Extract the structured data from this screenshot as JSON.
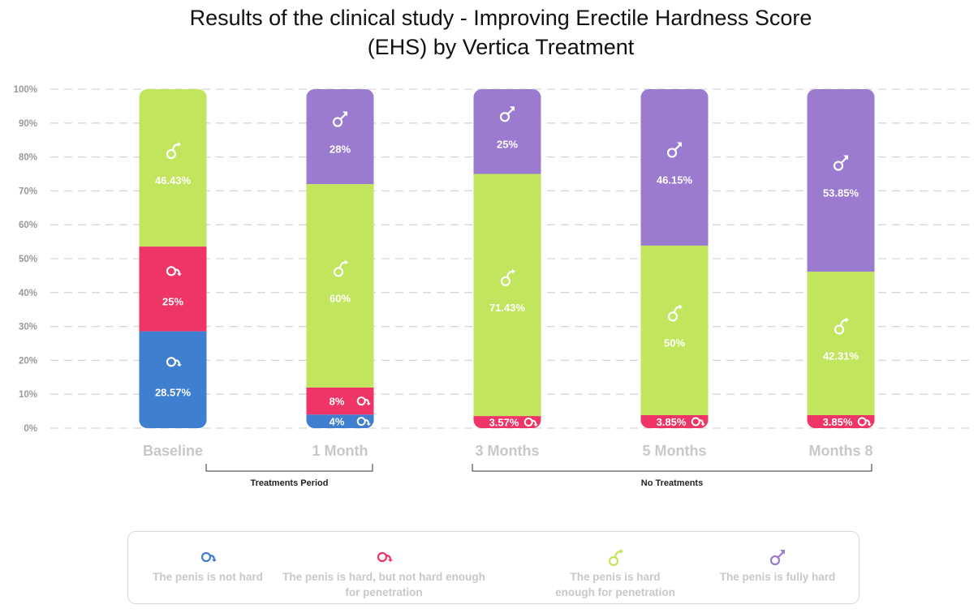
{
  "chart_data": {
    "type": "bar",
    "stacked": true,
    "title": "Results of the clinical study - Improving Erectile Hardness Score (EHS) by Vertica Treatment",
    "title_lines": [
      "Results of the clinical study - Improving Erectile Hardness Score",
      "(EHS) by Vertica Treatment"
    ],
    "categories": [
      "Baseline",
      "1 Month",
      "3 Months",
      "5 Months",
      "Months 8"
    ],
    "yticks": [
      "0%",
      "10%",
      "20%",
      "30%",
      "40%",
      "50%",
      "60%",
      "70%",
      "80%",
      "90%",
      "100%"
    ],
    "ylim": [
      0,
      100
    ],
    "grid": true,
    "series": [
      {
        "name": "The penis is not hard",
        "color": "#3f7fcf",
        "icon": "not-hard-icon",
        "values": [
          28.57,
          4,
          0,
          0,
          0
        ],
        "labels": [
          "28.57%",
          "4%",
          "",
          "",
          ""
        ]
      },
      {
        "name": "The penis is hard, but not hard enough for penetration",
        "color": "#ef3466",
        "icon": "partially-hard-icon",
        "values": [
          25,
          8,
          3.57,
          3.85,
          3.85
        ],
        "labels": [
          "25%",
          "8%",
          "3.57%",
          "3.85%",
          "3.85%"
        ]
      },
      {
        "name": "The penis is hard enough for penetration",
        "color": "#c2e55e",
        "icon": "hard-enough-icon",
        "values": [
          46.43,
          60,
          71.43,
          50,
          42.31
        ],
        "labels": [
          "46.43%",
          "60%",
          "71.43%",
          "50%",
          "42.31%"
        ]
      },
      {
        "name": "The penis is fully hard",
        "color": "#9b7bcf",
        "icon": "fully-hard-icon",
        "values": [
          0,
          28,
          25,
          46.15,
          53.85
        ],
        "labels": [
          "",
          "28%",
          "25%",
          "46.15%",
          "53.85%"
        ]
      }
    ],
    "annotations": [
      {
        "text": "Treatments Period",
        "span": [
          "Baseline",
          "1 Month"
        ]
      },
      {
        "text": "No Treatments",
        "span": [
          "3 Months",
          "Months 8"
        ]
      }
    ],
    "legend_position": "bottom",
    "legend_lines": [
      [
        "The penis is not hard"
      ],
      [
        "The penis is hard, but not hard enough",
        "for penetration"
      ],
      [
        "The penis is hard",
        "enough for penetration"
      ],
      [
        "The penis is fully hard"
      ]
    ]
  }
}
